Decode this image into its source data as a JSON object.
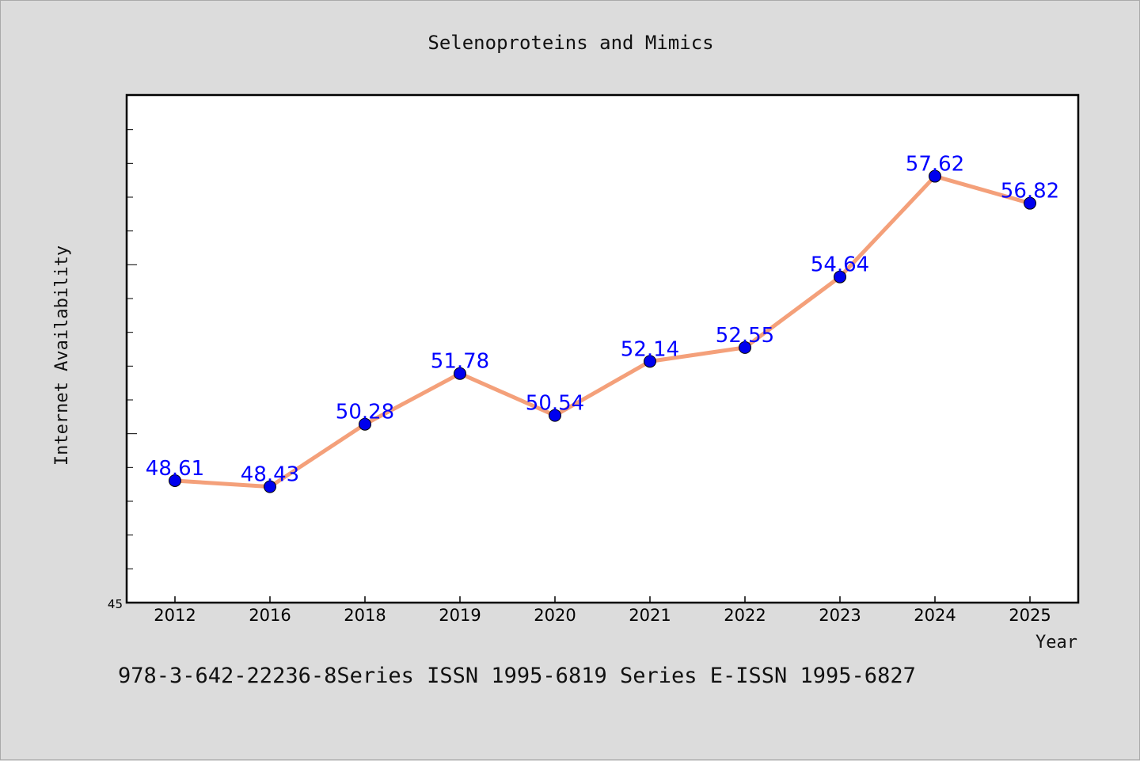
{
  "chart_data": {
    "type": "line",
    "title": "Selenoproteins and Mimics",
    "xlabel": "Year",
    "ylabel": "Internet Availability",
    "categories": [
      "2012",
      "2016",
      "2018",
      "2019",
      "2020",
      "2021",
      "2022",
      "2023",
      "2024",
      "2025"
    ],
    "series": [
      {
        "values": [
          48.61,
          48.43,
          50.28,
          51.78,
          50.54,
          52.14,
          52.55,
          54.64,
          57.62,
          56.82
        ]
      }
    ],
    "value_labels": [
      "48.61",
      "48.43",
      "50.28",
      "51.78",
      "50.54",
      "52.14",
      "52.55",
      "54.64",
      "57.62",
      "56.82"
    ],
    "ylim": [
      45,
      60
    ],
    "y_tick_labels": [
      "45"
    ],
    "grid": false,
    "line_color": "#f4a07a",
    "marker_color": "#0000ee",
    "label_color": "#0000ff"
  },
  "footer_text": "978-3-642-22236-8Series ISSN 1995-6819 Series E-ISSN 1995-6827"
}
